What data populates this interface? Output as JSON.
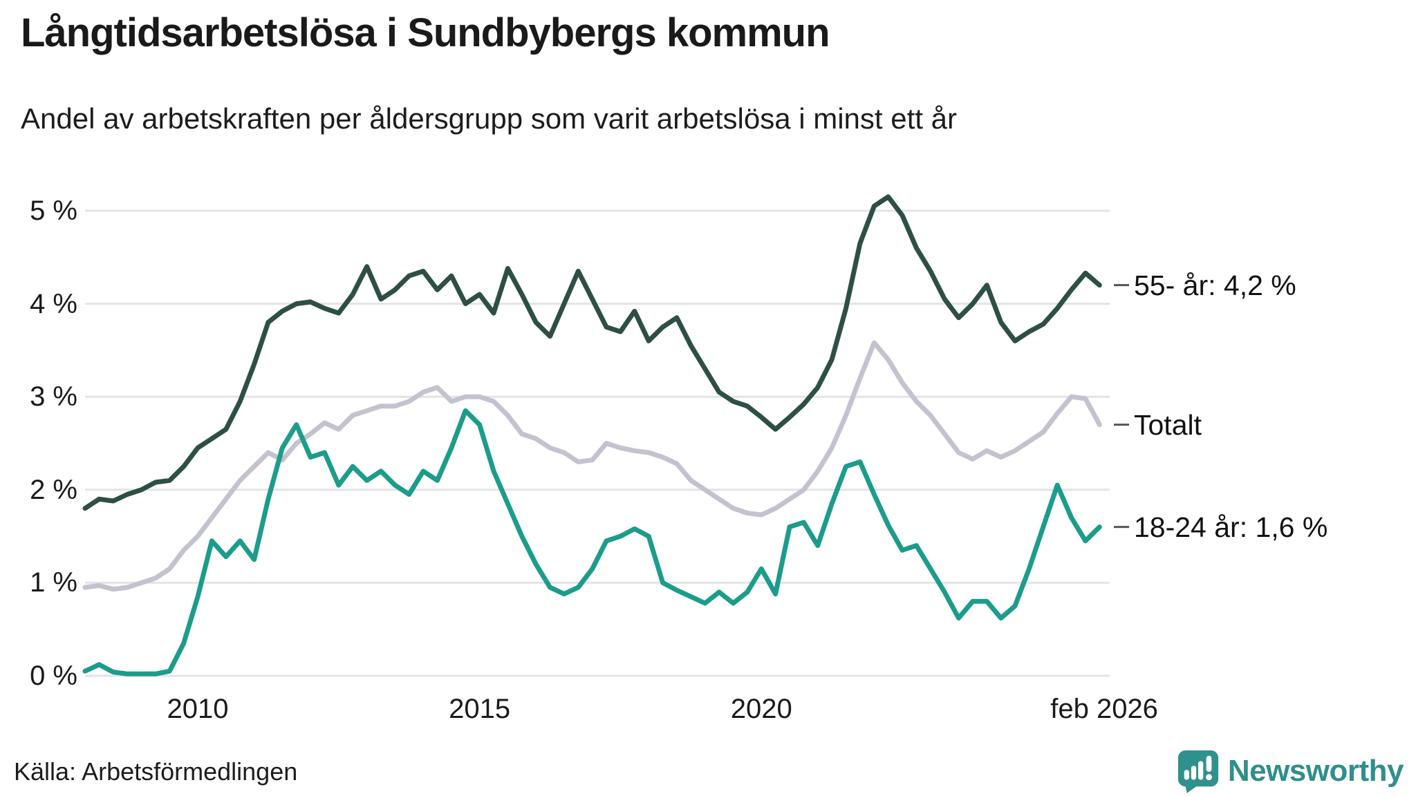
{
  "header": {
    "title": "Långtidsarbetslösa i Sundbybergs kommun",
    "subtitle": "Andel av arbetskraften per åldersgrupp som varit arbetslösa i minst ett år"
  },
  "footer": {
    "source": "Källa: Arbetsförmedlingen",
    "logo_text": "Newsworthy",
    "logo_color": "#2e8f8c"
  },
  "chart_data": {
    "type": "line",
    "title": "Långtidsarbetslösa i Sundbybergs kommun",
    "subtitle": "Andel av arbetskraften per åldersgrupp som varit arbetslösa i minst ett år",
    "xlabel": "",
    "ylabel": "",
    "grid": true,
    "grid_color": "#e4e3e9",
    "tick_dash_color": "#55525e",
    "legend_position": "right-end-labels",
    "x_start": 2008.0,
    "x_step": 0.25,
    "xlim": [
      2008.0,
      2026.18
    ],
    "ylim": [
      0,
      5
    ],
    "y_ticks": [
      {
        "v": 0,
        "label": "0 %"
      },
      {
        "v": 1,
        "label": "1 %"
      },
      {
        "v": 2,
        "label": "2 %"
      },
      {
        "v": 3,
        "label": "3 %"
      },
      {
        "v": 4,
        "label": "4 %"
      },
      {
        "v": 5,
        "label": "5 %"
      }
    ],
    "x_ticks": [
      {
        "v": 2010,
        "label": "2010"
      },
      {
        "v": 2015,
        "label": "2015"
      },
      {
        "v": 2020,
        "label": "2020"
      },
      {
        "v": 2026.083,
        "label": "feb 2026"
      }
    ],
    "series": [
      {
        "name": "Totalt",
        "end_label": "Totalt",
        "color": "#c5c2d0",
        "values": [
          0.95,
          0.97,
          0.93,
          0.95,
          1.0,
          1.05,
          1.15,
          1.35,
          1.5,
          1.7,
          1.9,
          2.1,
          2.25,
          2.4,
          2.32,
          2.5,
          2.6,
          2.72,
          2.65,
          2.8,
          2.85,
          2.9,
          2.9,
          2.95,
          3.05,
          3.1,
          2.95,
          3.0,
          3.0,
          2.95,
          2.8,
          2.6,
          2.55,
          2.45,
          2.4,
          2.3,
          2.32,
          2.5,
          2.45,
          2.42,
          2.4,
          2.35,
          2.28,
          2.1,
          2.0,
          1.9,
          1.8,
          1.75,
          1.73,
          1.8,
          1.9,
          2.0,
          2.2,
          2.45,
          2.8,
          3.2,
          3.58,
          3.4,
          3.15,
          2.95,
          2.8,
          2.6,
          2.4,
          2.33,
          2.42,
          2.35,
          2.42,
          2.52,
          2.62,
          2.82,
          3.0,
          2.98,
          2.7
        ]
      },
      {
        "name": "55- år",
        "end_label": "55- år: 4,2 %",
        "color": "#2e4f46",
        "values": [
          1.8,
          1.9,
          1.88,
          1.95,
          2.0,
          2.08,
          2.1,
          2.25,
          2.45,
          2.55,
          2.65,
          2.95,
          3.35,
          3.8,
          3.92,
          4.0,
          4.02,
          3.95,
          3.9,
          4.1,
          4.4,
          4.05,
          4.15,
          4.3,
          4.35,
          4.15,
          4.3,
          4.0,
          4.1,
          3.9,
          4.38,
          4.1,
          3.8,
          3.65,
          4.0,
          4.35,
          4.05,
          3.75,
          3.7,
          3.92,
          3.6,
          3.75,
          3.85,
          3.55,
          3.3,
          3.05,
          2.95,
          2.9,
          2.78,
          2.65,
          2.78,
          2.92,
          3.1,
          3.4,
          3.95,
          4.65,
          5.05,
          5.15,
          4.95,
          4.6,
          4.35,
          4.05,
          3.85,
          4.0,
          4.2,
          3.8,
          3.6,
          3.7,
          3.78,
          3.95,
          4.15,
          4.33,
          4.2
        ]
      },
      {
        "name": "18-24 år",
        "end_label": "18-24 år: 1,6 %",
        "color": "#1c9c8b",
        "values": [
          0.05,
          0.12,
          0.04,
          0.02,
          0.02,
          0.02,
          0.05,
          0.35,
          0.85,
          1.45,
          1.28,
          1.45,
          1.25,
          1.9,
          2.45,
          2.7,
          2.35,
          2.4,
          2.05,
          2.25,
          2.1,
          2.2,
          2.05,
          1.95,
          2.2,
          2.1,
          2.45,
          2.85,
          2.7,
          2.2,
          1.85,
          1.5,
          1.2,
          0.95,
          0.88,
          0.95,
          1.15,
          1.45,
          1.5,
          1.58,
          1.5,
          1.0,
          0.92,
          0.85,
          0.78,
          0.9,
          0.78,
          0.9,
          1.15,
          0.88,
          1.6,
          1.65,
          1.4,
          1.85,
          2.25,
          2.3,
          1.95,
          1.62,
          1.35,
          1.4,
          1.15,
          0.9,
          0.62,
          0.8,
          0.8,
          0.62,
          0.75,
          1.15,
          1.6,
          2.05,
          1.7,
          1.45,
          1.6
        ]
      }
    ]
  }
}
